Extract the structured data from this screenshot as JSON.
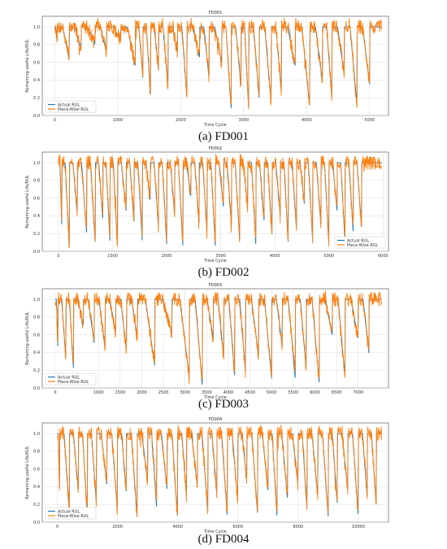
{
  "chart_data": [
    {
      "type": "line",
      "title": "FD001",
      "caption": "(a) FD001",
      "xlabel": "Time Cycle",
      "ylabel": "Remaining useful Life/RUL",
      "xlim": [
        -200,
        5300
      ],
      "ylim": [
        0.0,
        1.12
      ],
      "xticks": [
        0,
        1000,
        2000,
        3000,
        4000,
        5000
      ],
      "yticks": [
        "0.0",
        "0.2",
        "0.4",
        "0.6",
        "0.8",
        "1.0"
      ],
      "legend_position": "lower-left",
      "series": [
        {
          "name": "Actual RUL",
          "color": "#1f77b4"
        },
        {
          "name": "Piece-Wise RUL",
          "color": "#ff7f0e"
        }
      ],
      "dip_x": [
        40,
        230,
        420,
        640,
        820,
        1050,
        1280,
        1400,
        1520,
        1650,
        1800,
        1950,
        2100,
        2300,
        2450,
        2650,
        2800,
        2960,
        3080,
        3250,
        3440,
        3600,
        3820,
        4050,
        4250,
        4400,
        4600,
        4800,
        5000
      ],
      "dip_min": [
        0.78,
        0.62,
        0.75,
        0.8,
        0.72,
        0.85,
        0.55,
        0.4,
        0.22,
        0.48,
        0.3,
        0.7,
        0.18,
        0.65,
        0.42,
        0.6,
        0.08,
        0.3,
        0.05,
        0.15,
        0.1,
        0.25,
        0.55,
        0.1,
        0.38,
        0.2,
        0.45,
        0.1,
        0.35
      ]
    },
    {
      "type": "line",
      "title": "FD002",
      "caption": "(b) FD002",
      "xlabel": "Time Cycle",
      "ylabel": "Remaining useful Life/RUL",
      "xlim": [
        -300,
        6100
      ],
      "ylim": [
        0.0,
        1.12
      ],
      "xticks": [
        0,
        1000,
        2000,
        3000,
        4000,
        5000,
        6000
      ],
      "yticks": [
        "0.0",
        "0.2",
        "0.4",
        "0.6",
        "0.8",
        "1.0"
      ],
      "legend_position": "lower-right",
      "series": [
        {
          "name": "Actual RUL",
          "color": "#1f77b4"
        },
        {
          "name": "Piece-Wise RUL",
          "color": "#ff7f0e"
        }
      ],
      "dip_x": [
        60,
        200,
        350,
        520,
        680,
        820,
        950,
        1090,
        1250,
        1400,
        1550,
        1700,
        1850,
        2000,
        2150,
        2300,
        2450,
        2600,
        2750,
        2900,
        3050,
        3200,
        3350,
        3500,
        3650,
        3800,
        3950,
        4100,
        4250,
        4400,
        4550,
        4700,
        4850,
        5000,
        5150,
        5300,
        5450,
        5600
      ],
      "dip_min": [
        0.3,
        0.05,
        0.4,
        0.2,
        0.08,
        0.35,
        0.12,
        0.05,
        0.45,
        0.3,
        0.1,
        0.55,
        0.25,
        0.08,
        0.4,
        0.05,
        0.6,
        0.3,
        0.15,
        0.02,
        0.5,
        0.25,
        0.1,
        0.45,
        0.05,
        0.35,
        0.15,
        0.4,
        0.05,
        0.25,
        0.5,
        0.1,
        0.3,
        0.05,
        0.45,
        0.05,
        0.2,
        0.28
      ]
    },
    {
      "type": "line",
      "title": "FD003",
      "caption": "(c) FD003",
      "xlabel": "Time Cycle",
      "ylabel": "Remaining useful Life/RUL",
      "xlim": [
        -300,
        7700
      ],
      "ylim": [
        0.0,
        1.12
      ],
      "xticks": [
        0,
        1000,
        1500,
        2000,
        2500,
        3000,
        3500,
        4000,
        4500,
        5000,
        5500,
        6000,
        6500,
        7000
      ],
      "yticks": [
        "0.0",
        "0.2",
        "0.4",
        "0.6",
        "0.8",
        "1.0"
      ],
      "legend_position": "lower-left",
      "series": [
        {
          "name": "Actual RUL",
          "color": "#1f77b4"
        },
        {
          "name": "Piece-Wise RUL",
          "color": "#ff7f0e"
        }
      ],
      "dip_x": [
        60,
        250,
        420,
        650,
        900,
        1150,
        1400,
        1650,
        1900,
        2300,
        2700,
        3100,
        3400,
        3650,
        3900,
        4150,
        4400,
        4700,
        5000,
        5250,
        5550,
        5800,
        6100,
        6400,
        6700,
        7000,
        7250
      ],
      "dip_min": [
        0.45,
        0.3,
        0.22,
        0.7,
        0.5,
        0.45,
        0.6,
        0.4,
        0.55,
        0.25,
        0.6,
        0.1,
        0.02,
        0.55,
        0.3,
        0.1,
        0.15,
        0.35,
        0.1,
        0.45,
        0.08,
        0.2,
        0.05,
        0.6,
        0.1,
        0.55,
        0.38
      ]
    },
    {
      "type": "line",
      "title": "FD004",
      "caption": "(d) FD004",
      "xlabel": "Time Cycle",
      "ylabel": "Remaining useful Life/RUL",
      "xlim": [
        -500,
        11000
      ],
      "ylim": [
        0.0,
        1.12
      ],
      "xticks": [
        0,
        2000,
        4000,
        6000,
        8000,
        10000
      ],
      "yticks": [
        "0.0",
        "0.2",
        "0.4",
        "0.6",
        "0.8",
        "1.0"
      ],
      "legend_position": "lower-left",
      "series": [
        {
          "name": "Actual RUL",
          "color": "#1f77b4"
        },
        {
          "name": "Piece-Wise RUL",
          "color": "#ff7f0e"
        }
      ],
      "dip_x": [
        80,
        400,
        700,
        1000,
        1300,
        1650,
        2000,
        2300,
        2650,
        3000,
        3300,
        3650,
        4000,
        4300,
        4650,
        5000,
        5300,
        5650,
        6000,
        6300,
        6650,
        7000,
        7300,
        7650,
        8000,
        8300,
        8650,
        9000,
        9300,
        9650,
        10000,
        10300,
        10600
      ],
      "dip_min": [
        0.25,
        0.1,
        0.35,
        0.05,
        0.2,
        0.4,
        0.1,
        0.3,
        0.05,
        0.45,
        0.15,
        0.35,
        0.02,
        0.25,
        0.4,
        0.1,
        0.3,
        0.05,
        0.2,
        0.45,
        0.1,
        0.35,
        0.05,
        0.25,
        0.4,
        0.1,
        0.3,
        0.05,
        0.2,
        0.35,
        0.05,
        0.25,
        0.15
      ]
    }
  ]
}
